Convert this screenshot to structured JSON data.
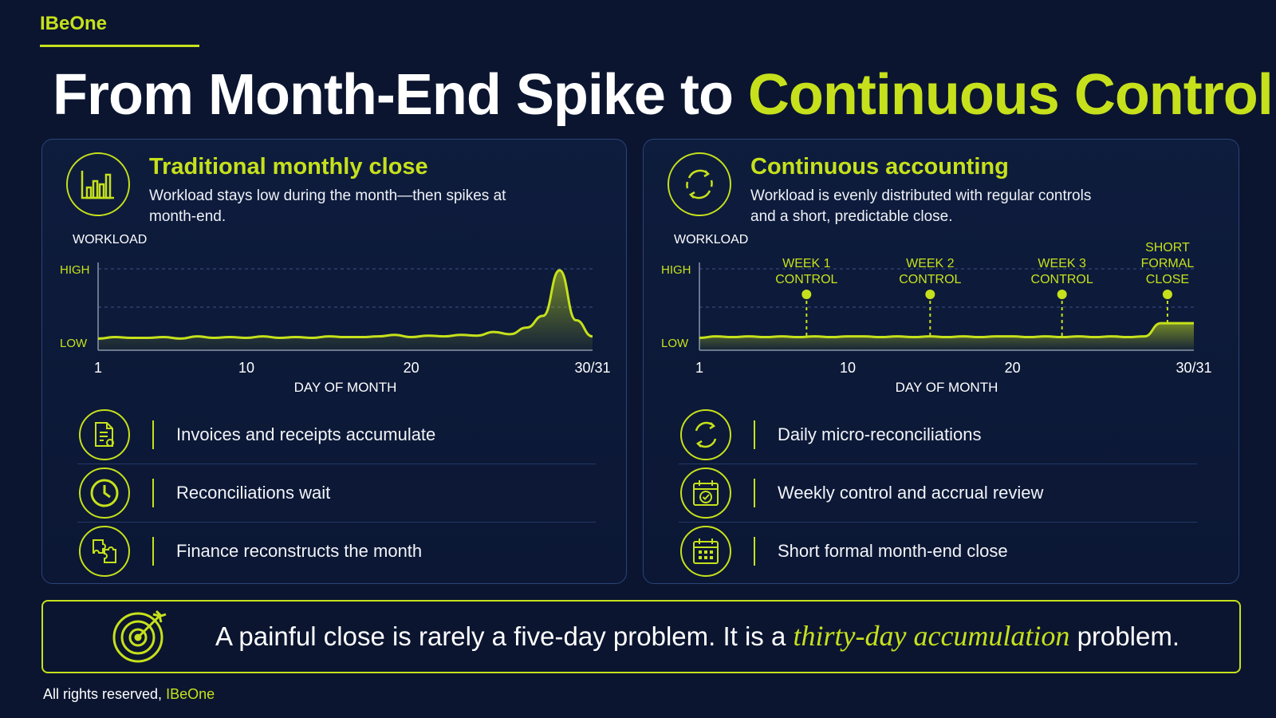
{
  "brand": "IBeOne",
  "headline": {
    "part1": "From Month-End Spike to ",
    "part2": "Continuous Control"
  },
  "left_panel": {
    "title": "Traditional monthly close",
    "description": "Workload stays low during the month—then spikes at month-end.",
    "icon": "bar-chart-icon",
    "items": [
      {
        "icon": "document-icon",
        "label": "Invoices and receipts accumulate"
      },
      {
        "icon": "clock-icon",
        "label": "Reconciliations wait"
      },
      {
        "icon": "puzzle-icon",
        "label": "Finance reconstructs the month"
      }
    ]
  },
  "right_panel": {
    "title": "Continuous accounting",
    "description": "Workload is evenly distributed with regular controls and a short, predictable close.",
    "icon": "cycle-icon",
    "items": [
      {
        "icon": "cycle-icon",
        "label": "Daily micro-reconciliations"
      },
      {
        "icon": "calendar-check-icon",
        "label": "Weekly control and accrual review"
      },
      {
        "icon": "calendar-icon",
        "label": "Short formal month-end close"
      }
    ]
  },
  "quote": {
    "before": "A painful close is rarely a five-day problem. It is a ",
    "emphasis": "thirty-day accumulation",
    "after": " problem.",
    "icon": "target-icon"
  },
  "footer": {
    "prefix": "All rights reserved, ",
    "brand": "IBeOne"
  },
  "colors": {
    "accent": "#c6e11b",
    "background": "#0b1530",
    "panel_border": "#2b4479"
  },
  "chart_data": [
    {
      "type": "area",
      "ylabel": "WORKLOAD",
      "xlabel": "DAY OF MONTH",
      "y_tick_labels": [
        "HIGH",
        "LOW"
      ],
      "x_tick_labels": [
        "1",
        "10",
        "20",
        "30/31"
      ],
      "x": [
        1,
        2,
        3,
        4,
        5,
        6,
        7,
        8,
        9,
        10,
        11,
        12,
        13,
        14,
        15,
        16,
        17,
        18,
        19,
        20,
        21,
        22,
        23,
        24,
        25,
        26,
        27,
        28,
        29,
        30,
        31
      ],
      "values": [
        0.05,
        0.07,
        0.06,
        0.06,
        0.07,
        0.05,
        0.08,
        0.06,
        0.07,
        0.06,
        0.08,
        0.06,
        0.07,
        0.06,
        0.08,
        0.07,
        0.07,
        0.08,
        0.1,
        0.07,
        0.09,
        0.08,
        0.1,
        0.09,
        0.14,
        0.11,
        0.2,
        0.36,
        0.98,
        0.3,
        0.08
      ],
      "ylim": [
        0,
        1
      ],
      "grid": "dashed"
    },
    {
      "type": "area",
      "ylabel": "WORKLOAD",
      "xlabel": "DAY OF MONTH",
      "y_tick_labels": [
        "HIGH",
        "LOW"
      ],
      "x_tick_labels": [
        "1",
        "10",
        "20",
        "30/31"
      ],
      "x": [
        1,
        2,
        3,
        4,
        5,
        6,
        7,
        8,
        9,
        10,
        11,
        12,
        13,
        14,
        15,
        16,
        17,
        18,
        19,
        20,
        21,
        22,
        23,
        24,
        25,
        26,
        27,
        28,
        29,
        30,
        31
      ],
      "values": [
        0.06,
        0.08,
        0.07,
        0.08,
        0.07,
        0.08,
        0.07,
        0.08,
        0.07,
        0.08,
        0.08,
        0.07,
        0.08,
        0.07,
        0.08,
        0.07,
        0.08,
        0.07,
        0.08,
        0.08,
        0.07,
        0.08,
        0.07,
        0.08,
        0.07,
        0.08,
        0.07,
        0.08,
        0.26,
        0.26,
        0.26
      ],
      "ylim": [
        0,
        1
      ],
      "grid": "dashed",
      "markers": [
        {
          "day": 7.5,
          "label_line1": "WEEK 1",
          "label_line2": "CONTROL",
          "label_line3": ""
        },
        {
          "day": 15,
          "label_line1": "WEEK 2",
          "label_line2": "CONTROL",
          "label_line3": ""
        },
        {
          "day": 23,
          "label_line1": "WEEK 3",
          "label_line2": "CONTROL",
          "label_line3": ""
        },
        {
          "day": 29.4,
          "label_line1": "SHORT",
          "label_line2": "FORMAL",
          "label_line3": "CLOSE"
        }
      ]
    }
  ]
}
